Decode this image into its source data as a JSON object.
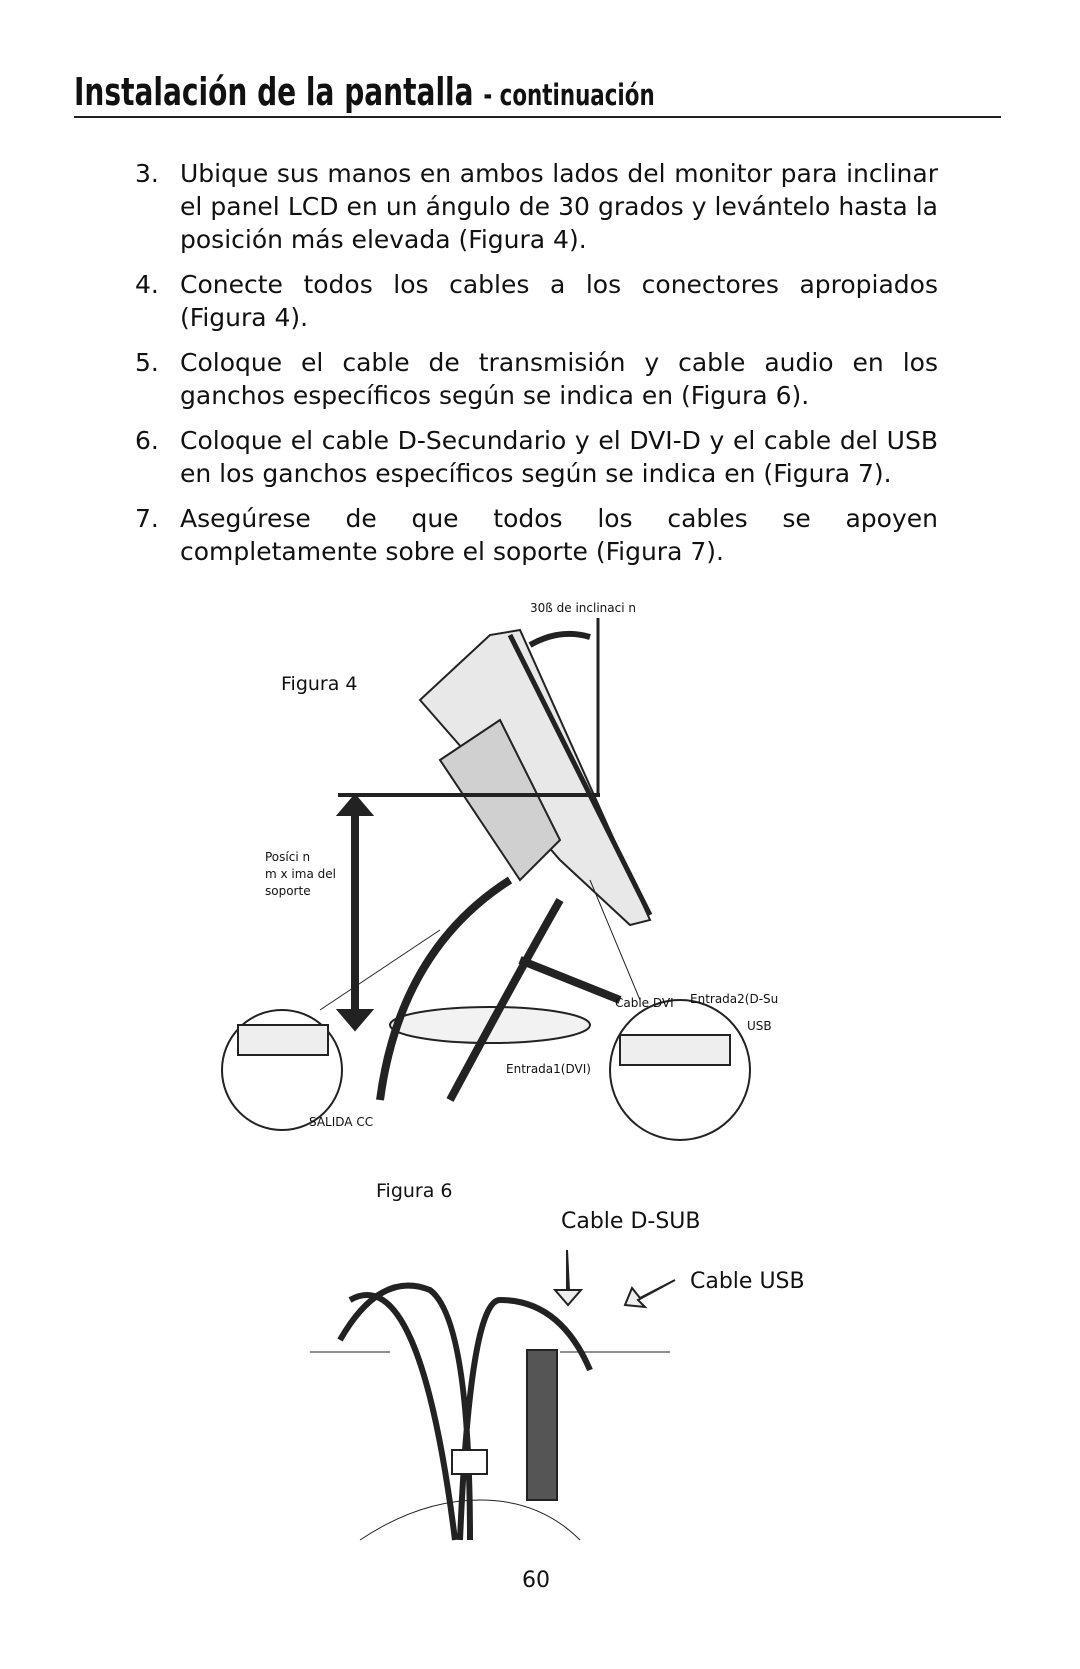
{
  "header": {
    "title": "Instalación de la pantalla",
    "subtitle": "- continuación"
  },
  "steps": [
    {
      "number": "3.",
      "text": "Ubique sus manos en ambos lados del monitor para inclinar el panel LCD en un ángulo de 30 grados y levántelo hasta la posición más elevada (Figura 4)."
    },
    {
      "number": "4.",
      "text": "Conecte todos los cables a los conectores apropiados (Figura 4)."
    },
    {
      "number": "5.",
      "text": "Coloque el cable de transmisión y cable audio en los ganchos específicos según se indica en (Figura 6)."
    },
    {
      "number": "6.",
      "text": "Coloque el cable D-Secundario y el DVI-D y el cable del USB en los ganchos específicos según se indica en (Figura 7)."
    },
    {
      "number": "7.",
      "text": "Asegúrese de que todos los cables se apoyen completamente sobre el soporte (Figura 7)."
    }
  ],
  "figure4": {
    "caption": "Figura 4",
    "tilt": "30ß de inclinaci n",
    "height_lines": [
      "Posíci n",
      "m x ima del",
      "soporte"
    ],
    "cable_dvi": "Cable DVI",
    "input2": "Entrada2(D-Su",
    "usb": "USB",
    "input1": "Entrada1(DVI)",
    "dc_out": "SALIDA CC"
  },
  "figure6": {
    "caption": "Figura 6",
    "cable_dsub": "Cable D-SUB",
    "cable_usb": "Cable USB"
  },
  "page_number": "60"
}
